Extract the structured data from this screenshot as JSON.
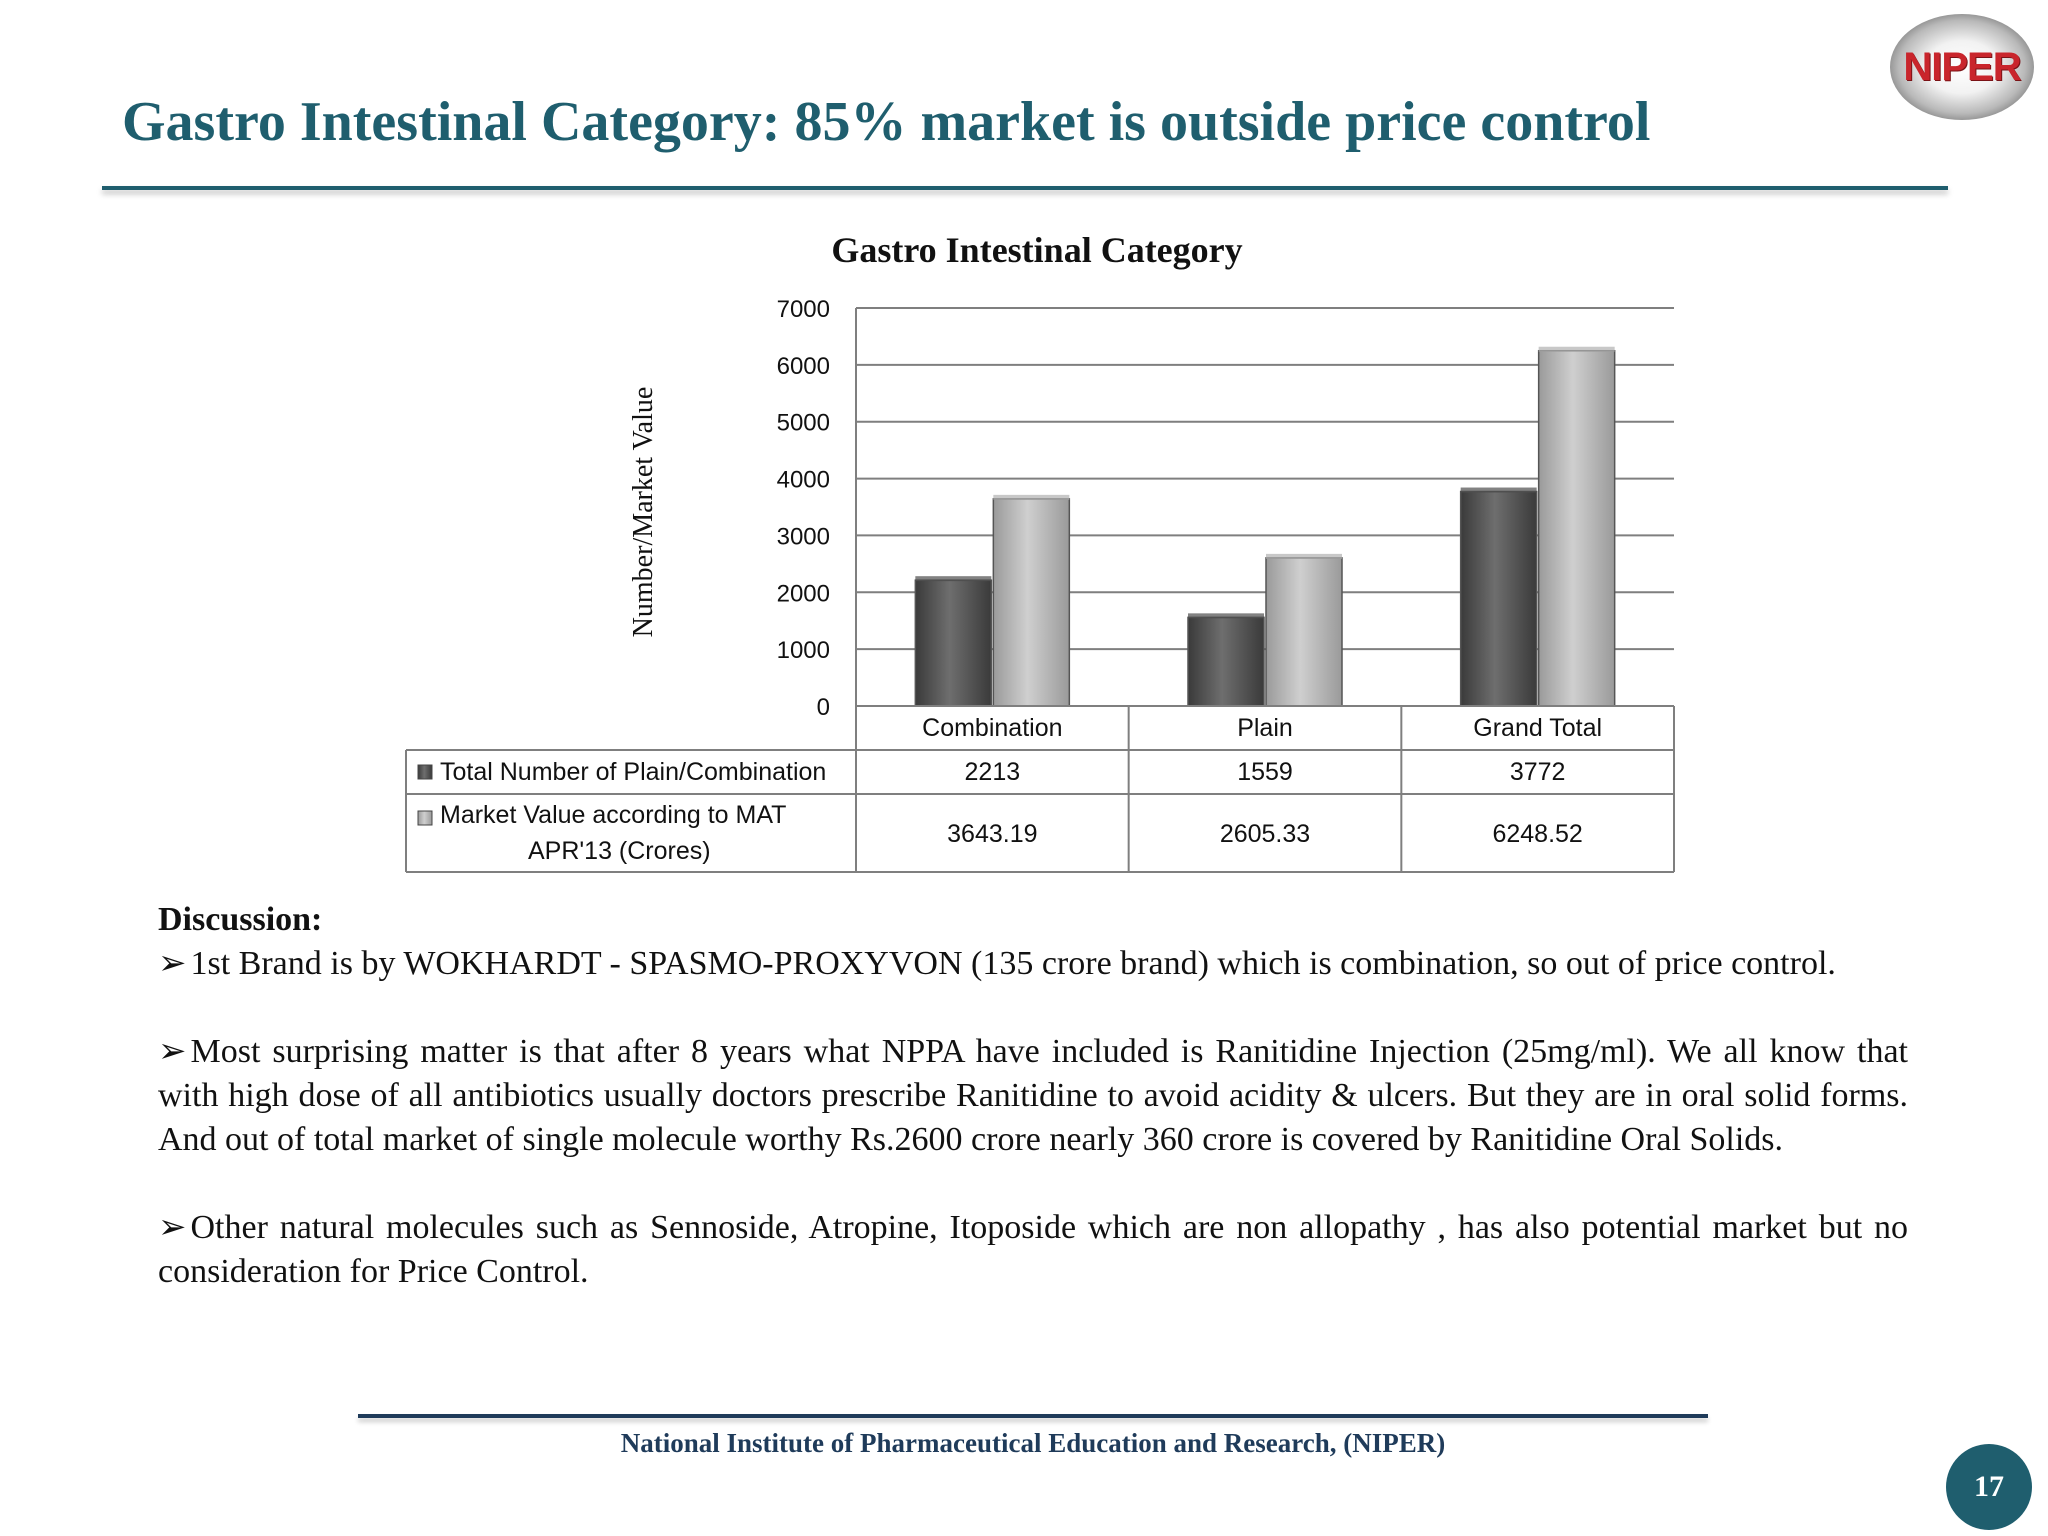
{
  "slide": {
    "title": "Gastro Intestinal Category: 85% market  is outside price control",
    "logo_text": "NIPER",
    "footer": "National Institute of Pharmaceutical Education and Research, (NIPER)",
    "page_number": "17"
  },
  "chart_data": {
    "type": "bar",
    "title": "Gastro Intestinal Category",
    "ylabel": "Number/Market Value",
    "xlabel": "",
    "categories": [
      "Combination",
      "Plain",
      "Grand Total"
    ],
    "series": [
      {
        "name": "Total Number of Plain/Combination",
        "values": [
          2213,
          1559,
          3772
        ],
        "labels": [
          "2213",
          "1559",
          "3772"
        ],
        "color": "#4d4d4d"
      },
      {
        "name": "Market Value according to MAT APR'13  (Crores)",
        "values": [
          3643.19,
          2605.33,
          6248.52
        ],
        "labels": [
          "3643.19",
          "2605.33",
          "6248.52"
        ],
        "color": "#b0b0b0"
      }
    ],
    "ylim": [
      0,
      7000
    ],
    "yticks": [
      "0",
      "1000",
      "2000",
      "3000",
      "4000",
      "5000",
      "6000",
      "7000"
    ],
    "grid": true,
    "legend": "data-table"
  },
  "discussion": {
    "heading": "Discussion:",
    "bullet_glyph": "➢",
    "bullets": [
      "1st Brand is by WOKHARDT - SPASMO-PROXYVON (135 crore brand) which is combination, so out of price control.",
      "Most surprising matter is that after 8 years what NPPA have included is Ranitidine Injection (25mg/ml). We all know that with high dose of all antibiotics usually doctors prescribe Ranitidine to avoid acidity & ulcers. But they are in oral solid forms. And out of total market of single molecule worthy Rs.2600 crore nearly 360 crore is covered by Ranitidine Oral Solids.",
      "Other natural molecules such as Sennoside, Atropine,  Itoposide which are non allopathy , has  also potential market but no consideration for Price Control."
    ]
  }
}
